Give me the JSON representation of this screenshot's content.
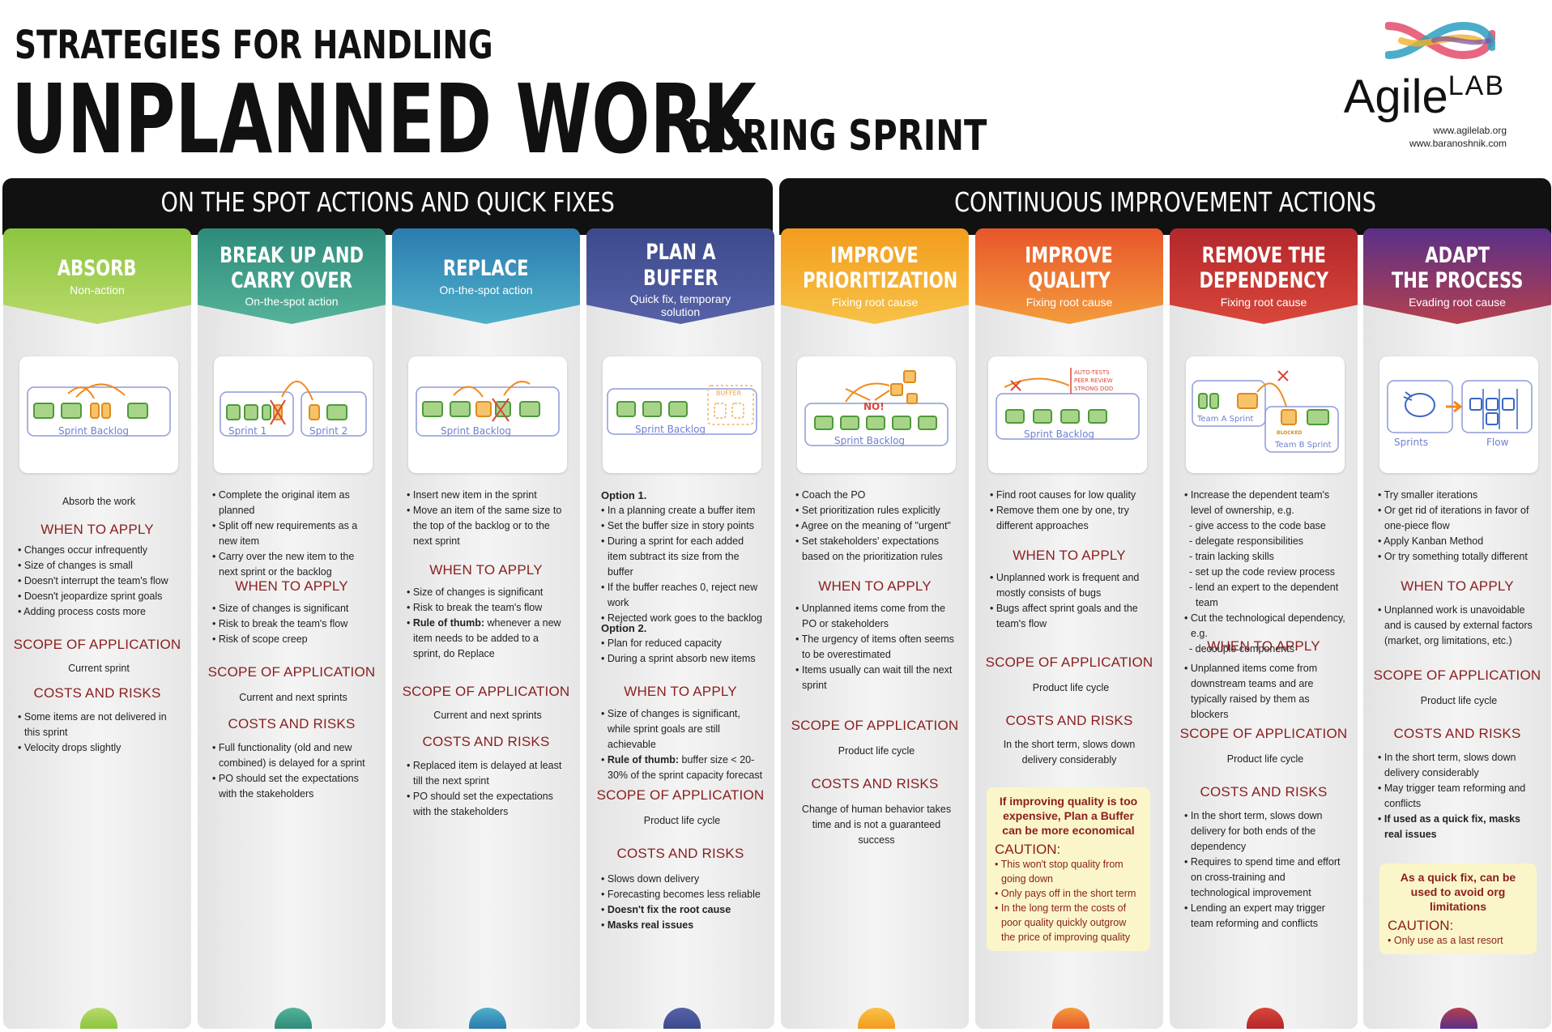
{
  "header": {
    "title_small": "STRATEGIES FOR HANDLING",
    "title_big": "UNPLANNED WORK",
    "title_suffix": "DURING SPRINT"
  },
  "logo": {
    "brand": "Agile",
    "brand_sup": "LAB",
    "url1": "www.agilelab.org",
    "url2": "www.baranoshnik.com"
  },
  "sections": {
    "left": "ON THE SPOT ACTIONS AND QUICK FIXES",
    "right": "CONTINUOUS IMPROVEMENT ACTIONS"
  },
  "headings": {
    "when": "WHEN TO APPLY",
    "scope": "SCOPE OF APPLICATION",
    "costs": "COSTS AND RISKS"
  },
  "columns": [
    {
      "title1": "ABSORB",
      "title2": "",
      "subtitle1": "Non-action",
      "subtitle2": "",
      "sketch_label": "Sprint Backlog",
      "description": "Absorb the work",
      "when": [
        "Changes occur infrequently",
        "Size of changes is small",
        "Doesn't interrupt the team's flow",
        "Doesn't jeopardize sprint goals",
        "Adding process costs more"
      ],
      "scope": "Current sprint",
      "costs": [
        "Some items are not delivered in this sprint",
        "Velocity drops slightly"
      ]
    },
    {
      "title1": "BREAK UP AND",
      "title2": "CARRY OVER",
      "subtitle1": "On-the-spot action",
      "subtitle2": "",
      "sketch_label": "Sprint 1",
      "sketch_label2": "Sprint 2",
      "description": [
        "Complete the original item as planned",
        "Split off new requirements as a new item",
        "Carry over the new item to the next sprint  or the backlog"
      ],
      "when": [
        "Size of changes is significant",
        "Risk to break the team's flow",
        "Risk of scope creep"
      ],
      "scope": "Current and next sprints",
      "costs": [
        "Full functionality (old and new combined) is delayed for a sprint",
        "PO should set the expectations with the stakeholders"
      ]
    },
    {
      "title1": "REPLACE",
      "title2": "",
      "subtitle1": "On-the-spot action",
      "subtitle2": "",
      "sketch_label": "Sprint Backlog",
      "description": [
        "Insert new item in the sprint",
        "Move an item of the same size to the top of the backlog or to the next sprint"
      ],
      "when_plain": [
        "Size of changes is significant",
        "Risk to break the team's flow"
      ],
      "when_rule_bold": "Rule of thumb:",
      "when_rule_text": " whenever a new item needs to be added to a sprint, do Replace",
      "scope": "Current and next sprints",
      "costs": [
        "Replaced item is delayed at least till the next sprint",
        "PO should set the expectations with the stakeholders"
      ]
    },
    {
      "title1": "PLAN A",
      "title2": "BUFFER",
      "subtitle1": "Quick fix, temporary",
      "subtitle2": "solution",
      "sketch_label": "Sprint Backlog",
      "sketch_label2": "BUFFER",
      "option1": "Option 1.",
      "option1_items": [
        "In a planning create a buffer item",
        "Set the buffer size in story points",
        "During a sprint for each added item subtract its size from the buffer",
        "If the buffer reaches 0, reject new work",
        "Rejected work goes to the backlog"
      ],
      "option2": "Option 2.",
      "option2_items": [
        "Plan for reduced capacity",
        "During a sprint absorb new items"
      ],
      "when_plain": [
        "Size of changes is significant, while sprint goals are still achievable"
      ],
      "when_rule_bold": "Rule of thumb:",
      "when_rule_text": " buffer size < 20-30% of the sprint capacity forecast",
      "scope": "Product life cycle",
      "costs_plain": [
        "Slows down delivery",
        "Forecasting becomes less reliable"
      ],
      "costs_bold": [
        "Doesn't fix the root cause",
        "Masks real issues"
      ]
    },
    {
      "title1": "IMPROVE",
      "title2": "PRIORITIZATION",
      "subtitle1": "Fixing root cause",
      "subtitle2": "",
      "sketch_label": "Sprint Backlog",
      "sketch_label2": "NO!",
      "description": [
        "Coach the PO",
        "Set prioritization rules explicitly",
        "Agree on the meaning of \"urgent\"",
        "Set stakeholders' expectations based on the prioritization rules"
      ],
      "when": [
        "Unplanned items come from the PO or stakeholders",
        "The urgency of items often seems to be overestimated",
        "Items usually can wait till the next sprint"
      ],
      "scope": "Product life cycle",
      "costs_text": "Change of human behavior takes time and  is not a guaranteed success"
    },
    {
      "title1": "IMPROVE",
      "title2": "QUALITY",
      "subtitle1": "Fixing root cause",
      "subtitle2": "",
      "sketch_label": "Sprint Backlog",
      "sketch_notes": [
        "AUTO-TESTS",
        "PEER REVIEW",
        "STRONG DOD"
      ],
      "description": [
        "Find root causes for low quality",
        "Remove them one by one, try different approaches"
      ],
      "when": [
        "Unplanned work is frequent and mostly consists of bugs",
        "Bugs affect sprint goals and the team's flow"
      ],
      "scope": "Product life cycle",
      "costs_text": "In the short term, slows down delivery considerably",
      "callout_bold": "If improving quality is too expensive, Plan a Buffer can be more economical",
      "callout_head": "CAUTION:",
      "callout_items": [
        "This won't stop quality from going down",
        "Only pays off in the short term",
        "In the long term the costs of poor quality quickly outgrow the price of improving quality"
      ]
    },
    {
      "title1": "REMOVE THE",
      "title2": "DEPENDENCY",
      "subtitle1": "Fixing root cause",
      "subtitle2": "",
      "sketch_label": "Team A Sprint",
      "sketch_label2": "Team B Sprint",
      "sketch_label3": "BLOCKED",
      "description": [
        "Increase the dependent team's level of ownership, e.g."
      ],
      "description_sub": [
        "- give access to the code base",
        "- delegate responsibilities",
        "- train lacking skills",
        "- set up the code review process",
        "- lend an expert to the dependent team"
      ],
      "description2": [
        "Cut the technological dependency, e.g."
      ],
      "description2_sub": [
        "- decouple components"
      ],
      "when": [
        "Unplanned items come from downstream teams and are typically raised by them as blockers"
      ],
      "scope": "Product life cycle",
      "costs": [
        "In the short term, slows down delivery for both ends of the dependency",
        "Requires to spend time and effort on cross-training and technological improvement",
        "Lending an expert may trigger team reforming and  conflicts"
      ]
    },
    {
      "title1": "ADAPT",
      "title2": "THE PROCESS",
      "subtitle1": "Evading root cause",
      "subtitle2": "",
      "sketch_label": "Sprints",
      "sketch_label2": "Flow",
      "description": [
        "Try smaller iterations",
        "Or get rid of iterations in favor of one-piece flow",
        "Apply Kanban Method",
        "Or try something totally different"
      ],
      "when": [
        "Unplanned work is unavoidable and is caused by external factors (market, org limitations, etc.)"
      ],
      "scope": "Product life cycle",
      "costs_plain": [
        "In the short term, slows down delivery considerably",
        "May trigger team reforming and conflicts"
      ],
      "costs_bold": [
        "If used as a quick fix, masks real issues"
      ],
      "callout_bold": "As a quick fix, can be used to avoid org limitations",
      "callout_head": "CAUTION:",
      "callout_items": [
        "Only use as a last resort"
      ]
    }
  ],
  "colors": {
    "absorb": [
      "#8cc63f",
      "#b9d96a"
    ],
    "breakup": [
      "#2e8b7a",
      "#55b39a"
    ],
    "replace": [
      "#2b7bb0",
      "#4fb0c8"
    ],
    "buffer": [
      "#3c4a8c",
      "#5762a8"
    ],
    "prioritize": [
      "#f39c1e",
      "#f7c246"
    ],
    "quality": [
      "#e8562a",
      "#f39c3c"
    ],
    "dependency": [
      "#b3272c",
      "#d9473a"
    ],
    "adapt": [
      "#5a3088",
      "#b4404e"
    ],
    "heading": "#8a1e1e",
    "callout": "#fbf6c9"
  }
}
